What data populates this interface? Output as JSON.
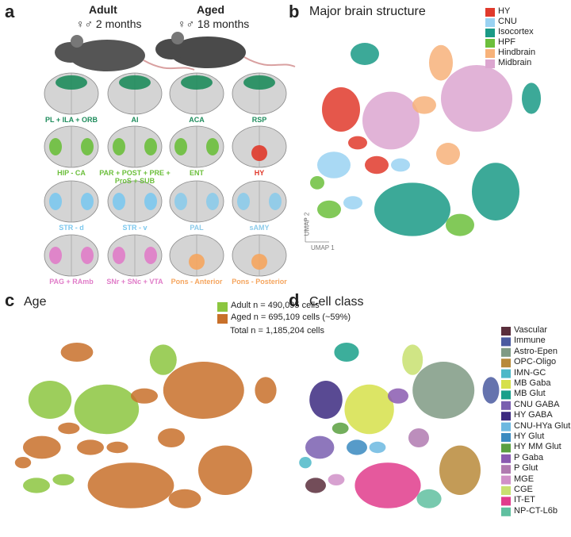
{
  "panel_a": {
    "label": "a",
    "groups": [
      {
        "title": "Adult",
        "subtitle": "♀♂ 2 months"
      },
      {
        "title": "Aged",
        "subtitle": "♀♂ 18 months"
      }
    ],
    "regions": [
      {
        "label": "PL + ILA + ORB",
        "color": "#1e8c5c"
      },
      {
        "label": "AI",
        "color": "#1e8c5c"
      },
      {
        "label": "ACA",
        "color": "#1e8c5c"
      },
      {
        "label": "RSP",
        "color": "#1e8c5c"
      },
      {
        "label": "HIP - CA",
        "color": "#6cbf3c"
      },
      {
        "label": "PAR + POST + PRE + ProS + SUB",
        "color": "#6cbf3c"
      },
      {
        "label": "ENT",
        "color": "#6cbf3c"
      },
      {
        "label": "HY",
        "color": "#e0382a"
      },
      {
        "label": "STR - d",
        "color": "#7cc8ee"
      },
      {
        "label": "STR - v",
        "color": "#7cc8ee"
      },
      {
        "label": "PAL",
        "color": "#8ccbea"
      },
      {
        "label": "sAMY",
        "color": "#8ccbea"
      },
      {
        "label": "PAG + RAmb",
        "color": "#e07cc8"
      },
      {
        "label": "SNr + SNc + VTA",
        "color": "#e07cc8"
      },
      {
        "label": "Pons - Anterior",
        "color": "#f5a55e"
      },
      {
        "label": "Pons - Posterior",
        "color": "#f5a55e"
      }
    ]
  },
  "panel_b": {
    "label": "b",
    "title": "Major brain structure",
    "legend": [
      {
        "name": "HY",
        "color": "#e03a2c"
      },
      {
        "name": "CNU",
        "color": "#9ad2f2"
      },
      {
        "name": "Isocortex",
        "color": "#1a9a86"
      },
      {
        "name": "HPF",
        "color": "#6cbf3c"
      },
      {
        "name": "Hindbrain",
        "color": "#f7b27a"
      },
      {
        "name": "Midbrain",
        "color": "#dca6d0"
      }
    ],
    "axis_y": "UMAP 2",
    "axis_x": "UMAP 1"
  },
  "panel_c": {
    "label": "c",
    "title": "Age",
    "legend": [
      {
        "name": "Adult n = 490,095 cells",
        "color": "#8cc63f"
      },
      {
        "name": "Aged n = 695,109 cells (~59%)",
        "color": "#c8702a"
      }
    ],
    "note": "Total n = 1,185,204 cells"
  },
  "panel_d": {
    "label": "d",
    "title": "Cell class",
    "legend": [
      {
        "name": "Vascular",
        "color": "#5a2e3c"
      },
      {
        "name": "Immune",
        "color": "#4a5aa0"
      },
      {
        "name": "Astro-Epen",
        "color": "#7f9a84"
      },
      {
        "name": "OPC-Oligo",
        "color": "#b88a3a"
      },
      {
        "name": "IMN-GC",
        "color": "#4cb8c8"
      },
      {
        "name": "MB Gaba",
        "color": "#d6e04a"
      },
      {
        "name": "MB Glut",
        "color": "#1aa08a"
      },
      {
        "name": "CNU GABA",
        "color": "#7a5fb0"
      },
      {
        "name": "HY GABA",
        "color": "#3c2a80"
      },
      {
        "name": "CNU-HYa Glut",
        "color": "#6cb8e0"
      },
      {
        "name": "HY Glut",
        "color": "#3a8ac0"
      },
      {
        "name": "HY MM Glut",
        "color": "#5aa040"
      },
      {
        "name": "P Gaba",
        "color": "#8a5ab0"
      },
      {
        "name": "P Glut",
        "color": "#b07ab0"
      },
      {
        "name": "MGE",
        "color": "#d090c8"
      },
      {
        "name": "CGE",
        "color": "#c8e070"
      },
      {
        "name": "IT-ET",
        "color": "#e03c8c"
      },
      {
        "name": "NP-CT-L6b",
        "color": "#60c0a0"
      }
    ]
  }
}
